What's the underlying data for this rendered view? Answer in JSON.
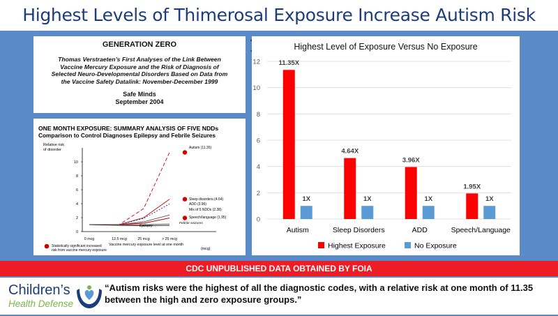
{
  "header": {
    "title": "Highest Levels of Thimerosal Exposure Increase Autism Risk 11.35X"
  },
  "document_card": {
    "heading": "GENERATION ZERO",
    "subtitle_lines": [
      "Thomas Verstraeten’s First Analyses of the Link Between",
      "Vaccine Mercury Exposure and the Risk of Diagnosis of",
      "Selected Neuro-Developmental Disorders Based on Data from",
      "the Vaccine Safety Datalink: November-December 1999"
    ],
    "organization": "Safe Minds",
    "date": "September 2004"
  },
  "figure_card": {
    "title_line1": "ONE MONTH EXPOSURE: SUMMARY ANALYSIS OF FIVE NDDs",
    "title_line2": "Comparison to Control Diagnoses Epilepsy and Febrile Seizures",
    "ylabel_line1": "Relative risk",
    "ylabel_line2": "of disorder",
    "xlabel": "Vaccine mercury exposure level at one month",
    "xlabel_unit": "(mcg)",
    "legend_line1": "Statistically significant increased",
    "legend_line2": "risk from vaccine mercury exposure",
    "epilepsy_label": "Epilepsy",
    "febrile_label": "Febrile seizures"
  },
  "chart_data": [
    {
      "type": "bar",
      "title": "Highest Level of Exposure Versus No Exposure",
      "categories": [
        "Autism",
        "Sleep Disorders",
        "ADD",
        "Speech/Language"
      ],
      "series": [
        {
          "name": "Highest Exposure",
          "color": "#ff0000",
          "values": [
            11.35,
            4.64,
            3.96,
            1.95
          ],
          "labels": [
            "11.35X",
            "4.64X",
            "3.96X",
            "1.95X"
          ]
        },
        {
          "name": "No Exposure",
          "color": "#5b9bd5",
          "values": [
            1,
            1,
            1,
            1
          ],
          "labels": [
            "1X",
            "1X",
            "1X",
            "1X"
          ]
        }
      ],
      "ylim": [
        0,
        12
      ],
      "yticks": [
        0,
        2,
        4,
        6,
        8,
        10,
        12
      ],
      "grid": true,
      "legend": "bottom"
    },
    {
      "type": "line",
      "x": [
        "0 mcg",
        "12.5 mcg",
        "25 mcg",
        "> 25 mcg"
      ],
      "ylim": [
        0,
        12
      ],
      "yticks": [
        0,
        2,
        4,
        6,
        8,
        10
      ],
      "series": [
        {
          "name": "Autism (11.35)",
          "values": [
            1,
            1,
            3.3,
            11.35
          ],
          "color": "#cc0000",
          "dash": "5,3",
          "significant": true
        },
        {
          "name": "Sleep disorders (4.64)",
          "values": [
            1,
            1,
            2.0,
            4.64
          ],
          "color": "#cc0000",
          "dash": "",
          "significant": true
        },
        {
          "name": "ADD (3.96)",
          "values": [
            1,
            1,
            1.9,
            3.96
          ],
          "color": "#1a237e",
          "dash": "2,2",
          "significant": false
        },
        {
          "name": "Mix of 5 NDDs (2.38)",
          "values": [
            1,
            1,
            1.4,
            2.38
          ],
          "color": "#555555",
          "dash": "",
          "significant": false
        },
        {
          "name": "Speech/language (1.95)",
          "values": [
            1,
            1,
            1.2,
            1.95
          ],
          "color": "#cc0000",
          "dash": "",
          "significant": true
        },
        {
          "name": "Febrile seizures",
          "values": [
            1,
            0.95,
            1.0,
            1.1
          ],
          "color": "#777777",
          "dash": "",
          "significant": false
        },
        {
          "name": "Epilepsy",
          "values": [
            1,
            0.9,
            0.85,
            0.9
          ],
          "color": "#222222",
          "dash": "",
          "significant": false
        }
      ]
    }
  ],
  "banner": {
    "text": "CDC UNPUBLISHED DATA OBTAINED BY FOIA"
  },
  "logo": {
    "line1": "Children’s",
    "line2": "Health Defense",
    "icon": "hands-heart-icon"
  },
  "quote": {
    "line1": "“Autism risks were the highest of all the diagnostic codes, with a relative risk at one month of 11.35",
    "line2": "between the high and zero exposure groups.”"
  }
}
